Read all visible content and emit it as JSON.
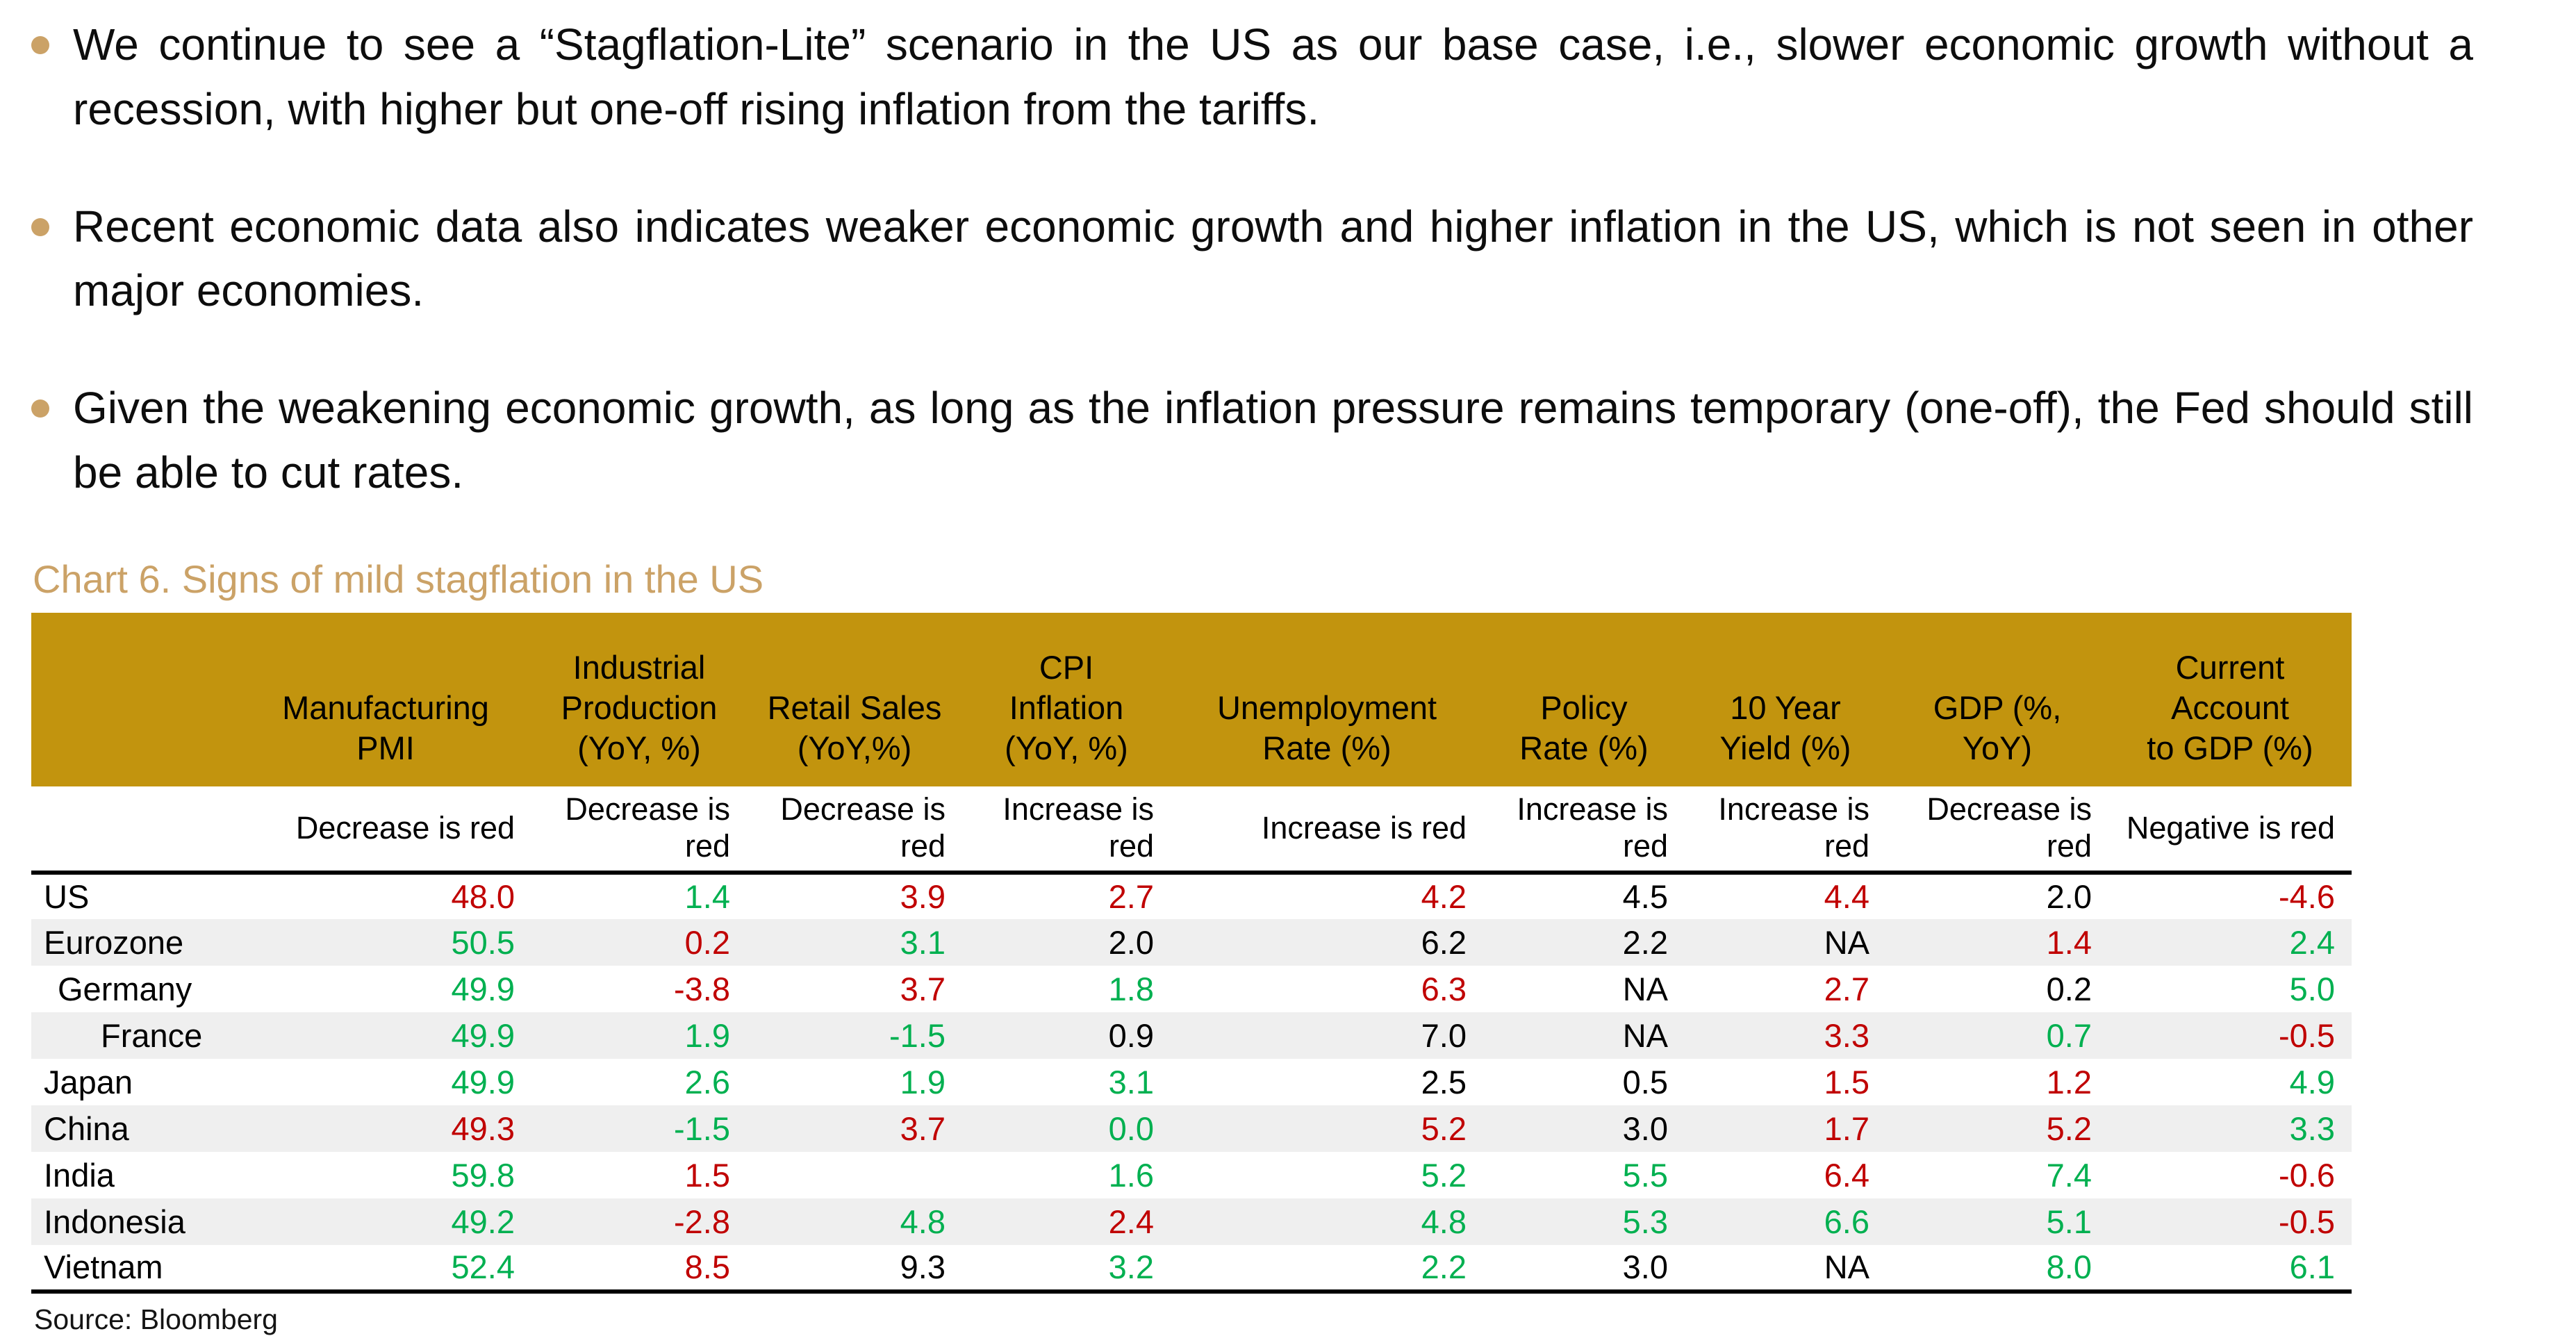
{
  "colors": {
    "header_gold": "#C2940E",
    "accent_tan": "#CBA267",
    "row_alt": "#EFEFEF",
    "value_red": "#C00000",
    "value_green": "#00B050",
    "value_black": "#000000"
  },
  "bullets": [
    {
      "text": "We continue to see a “Stagflation-Lite” scenario in the US as our base case, i.e., slower economic growth without a recession, with higher but one-off rising inflation from the tariffs."
    },
    {
      "text": "Recent economic data also indicates weaker economic growth and higher inflation in the US, which is not seen in other major economies."
    },
    {
      "text": "Given the weakening economic growth, as long as the inflation pressure remains temporary (one-off), the Fed should still be able to cut rates."
    }
  ],
  "chart": {
    "title": "Chart 6. Signs of mild stagflation in the US",
    "source": "Source: Bloomberg"
  },
  "table": {
    "header": [
      {
        "lines": [
          ""
        ]
      },
      {
        "lines": [
          "Manufacturing",
          "PMI"
        ]
      },
      {
        "lines": [
          "Industrial",
          "Production",
          "(YoY, %)"
        ]
      },
      {
        "lines": [
          "Retail Sales",
          "(YoY,%)"
        ]
      },
      {
        "lines": [
          "CPI",
          "Inflation",
          "(YoY, %)"
        ]
      },
      {
        "lines": [
          "Unemployment",
          "Rate (%)"
        ]
      },
      {
        "lines": [
          "Policy",
          "Rate (%)"
        ]
      },
      {
        "lines": [
          "10 Year",
          "Yield (%)"
        ]
      },
      {
        "lines": [
          "GDP (%,",
          "YoY)"
        ]
      },
      {
        "lines": [
          "Current",
          "Account",
          "to GDP (%)"
        ]
      }
    ],
    "subheader": [
      "",
      "Decrease is red",
      "Decrease is red",
      "Decrease is red",
      "Increase is red",
      "Increase is red",
      "Increase is red",
      "Increase is red",
      "Decrease is red",
      "Negative is red"
    ],
    "rows": [
      {
        "label": "US",
        "indent": 0,
        "values": [
          "48.0",
          "1.4",
          "3.9",
          "2.7",
          "4.2",
          "4.5",
          "4.4",
          "2.0",
          "-4.6"
        ],
        "colors": [
          "red",
          "green",
          "red",
          "red",
          "red",
          "black",
          "red",
          "black",
          "red"
        ]
      },
      {
        "label": "Eurozone",
        "indent": 0,
        "values": [
          "50.5",
          "0.2",
          "3.1",
          "2.0",
          "6.2",
          "2.2",
          "NA",
          "1.4",
          "2.4"
        ],
        "colors": [
          "green",
          "red",
          "green",
          "black",
          "black",
          "black",
          "black",
          "red",
          "green"
        ]
      },
      {
        "label": "Germany",
        "indent": 1,
        "values": [
          "49.9",
          "-3.8",
          "3.7",
          "1.8",
          "6.3",
          "NA",
          "2.7",
          "0.2",
          "5.0"
        ],
        "colors": [
          "green",
          "red",
          "red",
          "green",
          "red",
          "black",
          "red",
          "black",
          "green"
        ]
      },
      {
        "label": "France",
        "indent": 2,
        "values": [
          "49.9",
          "1.9",
          "-1.5",
          "0.9",
          "7.0",
          "NA",
          "3.3",
          "0.7",
          "-0.5"
        ],
        "colors": [
          "green",
          "green",
          "green",
          "black",
          "black",
          "black",
          "red",
          "green",
          "red"
        ]
      },
      {
        "label": "Japan",
        "indent": 0,
        "values": [
          "49.9",
          "2.6",
          "1.9",
          "3.1",
          "2.5",
          "0.5",
          "1.5",
          "1.2",
          "4.9"
        ],
        "colors": [
          "green",
          "green",
          "green",
          "green",
          "black",
          "black",
          "red",
          "red",
          "green"
        ]
      },
      {
        "label": "China",
        "indent": 0,
        "values": [
          "49.3",
          "-1.5",
          "3.7",
          "0.0",
          "5.2",
          "3.0",
          "1.7",
          "5.2",
          "3.3"
        ],
        "colors": [
          "red",
          "green",
          "red",
          "green",
          "red",
          "black",
          "red",
          "red",
          "green"
        ]
      },
      {
        "label": "India",
        "indent": 0,
        "values": [
          "59.8",
          "1.5",
          "",
          "1.6",
          "5.2",
          "5.5",
          "6.4",
          "7.4",
          "-0.6"
        ],
        "colors": [
          "green",
          "red",
          "black",
          "green",
          "green",
          "green",
          "red",
          "green",
          "red"
        ]
      },
      {
        "label": "Indonesia",
        "indent": 0,
        "values": [
          "49.2",
          "-2.8",
          "4.8",
          "2.4",
          "4.8",
          "5.3",
          "6.6",
          "5.1",
          "-0.5"
        ],
        "colors": [
          "green",
          "red",
          "green",
          "red",
          "green",
          "green",
          "green",
          "green",
          "red"
        ]
      },
      {
        "label": "Vietnam",
        "indent": 0,
        "values": [
          "52.4",
          "8.5",
          "9.3",
          "3.2",
          "2.2",
          "3.0",
          "NA",
          "8.0",
          "6.1"
        ],
        "colors": [
          "green",
          "red",
          "black",
          "green",
          "green",
          "black",
          "black",
          "green",
          "green"
        ]
      }
    ]
  }
}
